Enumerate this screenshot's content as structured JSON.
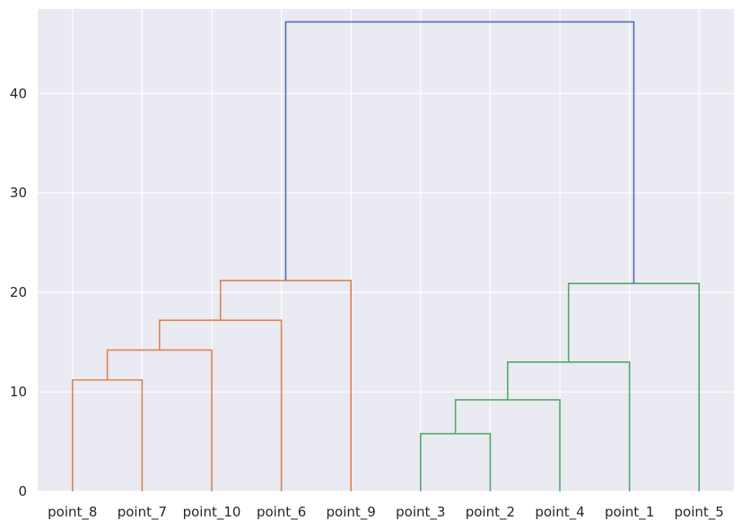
{
  "chart_data": {
    "type": "dendrogram",
    "title": "",
    "xlabel": "",
    "ylabel": "",
    "ylim": [
      0,
      48.5
    ],
    "yticks": [
      0,
      10,
      20,
      30,
      40
    ],
    "grid": true,
    "background": "#eaeaf2",
    "leaves": [
      "point_8",
      "point_7",
      "point_10",
      "point_6",
      "point_9",
      "point_3",
      "point_2",
      "point_4",
      "point_1",
      "point_5"
    ],
    "links": [
      {
        "left": [
          0
        ],
        "right": [
          1
        ],
        "height": 11.2,
        "color": "#dd8452"
      },
      {
        "left": [
          0,
          1
        ],
        "right": [
          2
        ],
        "height": 14.2,
        "color": "#dd8452"
      },
      {
        "left": [
          0,
          1,
          2
        ],
        "right": [
          3
        ],
        "height": 17.2,
        "color": "#dd8452"
      },
      {
        "left": [
          0,
          1,
          2,
          3
        ],
        "right": [
          4
        ],
        "height": 21.2,
        "color": "#dd8452"
      },
      {
        "left": [
          5
        ],
        "right": [
          6
        ],
        "height": 5.8,
        "color": "#55a868"
      },
      {
        "left": [
          5,
          6
        ],
        "right": [
          7
        ],
        "height": 9.2,
        "color": "#55a868"
      },
      {
        "left": [
          5,
          6,
          7
        ],
        "right": [
          8
        ],
        "height": 13.0,
        "color": "#55a868"
      },
      {
        "left": [
          5,
          6,
          7,
          8
        ],
        "right": [
          9
        ],
        "height": 20.9,
        "color": "#55a868"
      },
      {
        "left": [
          0,
          1,
          2,
          3,
          4
        ],
        "right": [
          5,
          6,
          7,
          8,
          9
        ],
        "height": 47.2,
        "color": "#4c72b0"
      }
    ]
  }
}
